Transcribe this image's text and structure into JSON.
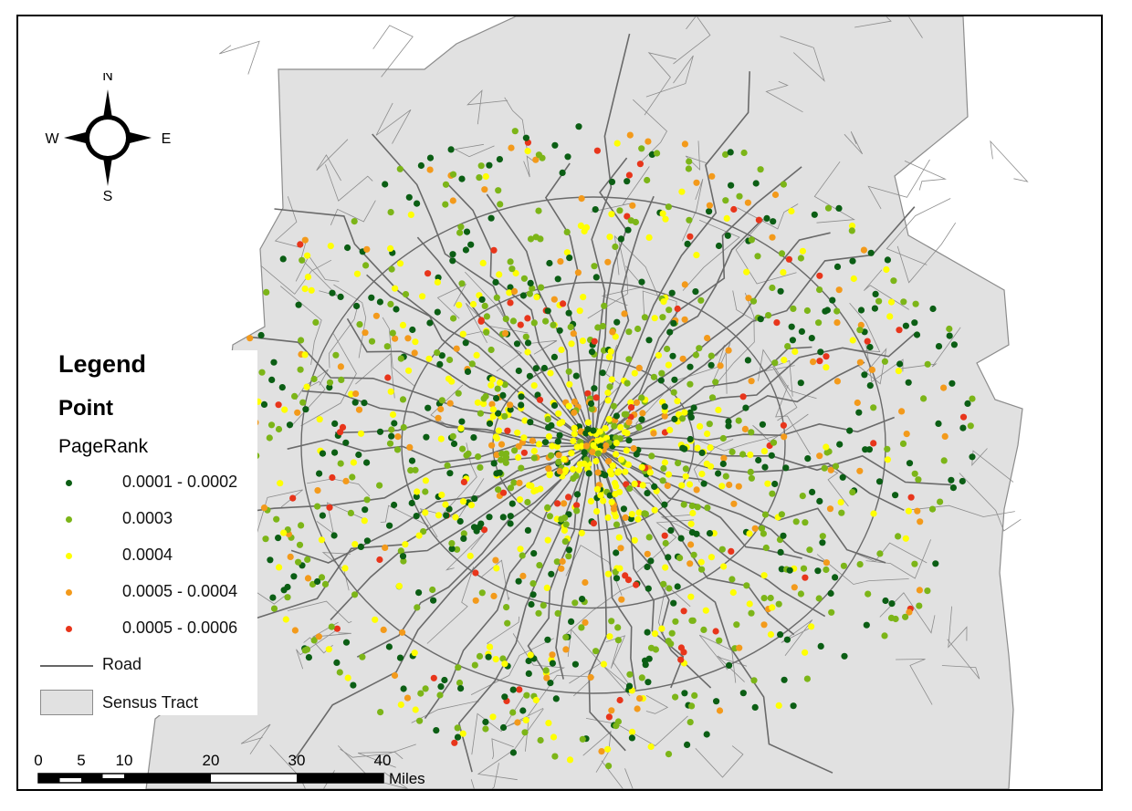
{
  "map": {
    "colors": {
      "tract_fill": "#e1e1e1",
      "tract_border": "#8c8c8c",
      "road": "#6a6a6a",
      "background": "#ffffff"
    }
  },
  "legend": {
    "title": "Legend",
    "subtitle": "Point",
    "field": "PageRank",
    "classes": [
      {
        "label": "0.0001 - 0.0002",
        "color": "#0b5e14",
        "icon": "dark-green-dot"
      },
      {
        "label": "0.0003",
        "color": "#7cb518",
        "icon": "light-green-dot"
      },
      {
        "label": "0.0004",
        "color": "#ffff00",
        "icon": "yellow-dot"
      },
      {
        "label": "0.0005 - 0.0004",
        "color": "#f39a1b",
        "icon": "orange-dot"
      },
      {
        "label": "0.0005 - 0.0006",
        "color": "#e8351b",
        "icon": "red-dot"
      }
    ],
    "road_label": "Road",
    "tract_label": "Sensus Tract"
  },
  "north_arrow": {
    "n": "N",
    "s": "S",
    "e": "E",
    "w": "W"
  },
  "scale_bar": {
    "ticks": [
      "0",
      "5",
      "10",
      "20",
      "30",
      "40"
    ],
    "unit": "Miles"
  }
}
